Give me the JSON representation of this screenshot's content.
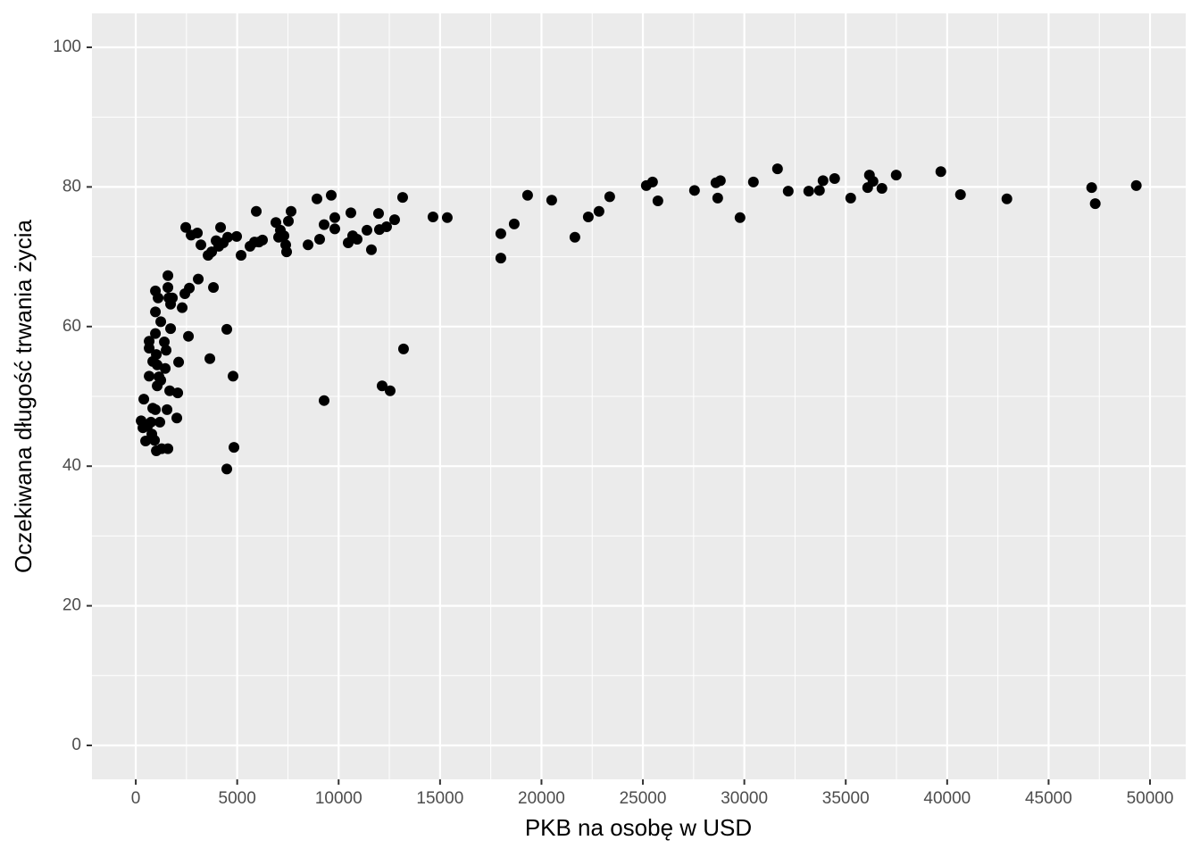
{
  "chart_data": {
    "type": "scatter",
    "x_label": "PKB na osobę w USD",
    "y_label": "Oczekiwana długość trwania życia",
    "color": "#000000",
    "grid": true,
    "minor_grid": true,
    "xlim": [
      -2160,
      51760
    ],
    "ylim": [
      -4.86,
      104.86
    ],
    "xticks": [
      0,
      5000,
      10000,
      15000,
      20000,
      25000,
      30000,
      35000,
      40000,
      45000,
      50000
    ],
    "yticks": [
      0,
      20,
      40,
      60,
      80,
      100
    ],
    "x": [
      264,
      352,
      396,
      484,
      572,
      660,
      660,
      660,
      748,
      792,
      836,
      836,
      924,
      968,
      968,
      968,
      968,
      1012,
      1012,
      1056,
      1056,
      1100,
      1144,
      1188,
      1232,
      1232,
      1276,
      1408,
      1452,
      1496,
      1540,
      1584,
      1584,
      1584,
      1628,
      1672,
      1716,
      1716,
      1804,
      2024,
      2068,
      2112,
      2288,
      2420,
      2464,
      2596,
      2640,
      2728,
      3036,
      3080,
      3212,
      3564,
      3652,
      3740,
      3828,
      3960,
      4092,
      4180,
      4312,
      4488,
      4488,
      4532,
      4796,
      4840,
      4972,
      5192,
      5632,
      5852,
      5940,
      6072,
      6248,
      6908,
      7040,
      7128,
      7304,
      7392,
      7436,
      7524,
      7656,
      8492,
      8932,
      9064,
      9284,
      9284,
      9636,
      9812,
      9812,
      10472,
      10604,
      10692,
      10912,
      11396,
      11616,
      11968,
      12012,
      12144,
      12364,
      12540,
      12760,
      13156,
      13200,
      14652,
      15356,
      17996,
      17996,
      18656,
      19316,
      20504,
      21648,
      22308,
      22836,
      23364,
      25168,
      25476,
      25740,
      27544,
      28600,
      28688,
      28820,
      29788,
      30448,
      31636,
      32164,
      33176,
      33704,
      33880,
      34452,
      35244,
      36080,
      36168,
      36344,
      36784,
      37488,
      39688,
      40656,
      42944,
      47124,
      47300,
      49324
    ],
    "values": [
      46.5,
      45.5,
      49.6,
      43.6,
      45.7,
      57.9,
      56.9,
      52.9,
      46.3,
      44.6,
      55.0,
      48.3,
      43.7,
      59.0,
      62.1,
      65.1,
      48.1,
      42.2,
      56.0,
      54.5,
      51.5,
      64.1,
      52.8,
      46.3,
      60.7,
      52.3,
      42.5,
      57.8,
      54.0,
      56.6,
      48.1,
      42.5,
      67.3,
      65.6,
      64.1,
      50.8,
      63.2,
      59.7,
      64.1,
      46.9,
      50.5,
      54.9,
      62.7,
      64.7,
      74.2,
      58.6,
      65.5,
      73.1,
      73.4,
      66.8,
      71.7,
      70.2,
      55.4,
      70.7,
      65.6,
      72.3,
      71.5,
      74.2,
      72.0,
      39.6,
      59.6,
      72.8,
      52.9,
      42.7,
      72.9,
      70.2,
      71.5,
      72.1,
      76.5,
      72.1,
      72.4,
      74.9,
      72.8,
      73.8,
      73.0,
      71.7,
      70.7,
      75.1,
      76.5,
      71.7,
      78.3,
      72.5,
      74.6,
      49.4,
      78.8,
      74.0,
      75.6,
      72.0,
      76.3,
      73.0,
      72.5,
      73.8,
      71.0,
      76.2,
      73.9,
      51.5,
      74.3,
      50.8,
      75.3,
      78.5,
      56.8,
      75.7,
      75.6,
      73.3,
      69.8,
      74.7,
      78.8,
      78.1,
      72.8,
      75.7,
      76.5,
      78.6,
      80.2,
      80.7,
      78.0,
      79.5,
      80.6,
      78.4,
      80.9,
      75.6,
      80.7,
      82.6,
      79.4,
      79.4,
      79.5,
      80.9,
      81.2,
      78.4,
      79.9,
      81.7,
      80.8,
      79.8,
      81.7,
      82.2,
      78.9,
      78.3,
      79.9,
      77.6,
      80.2
    ]
  }
}
